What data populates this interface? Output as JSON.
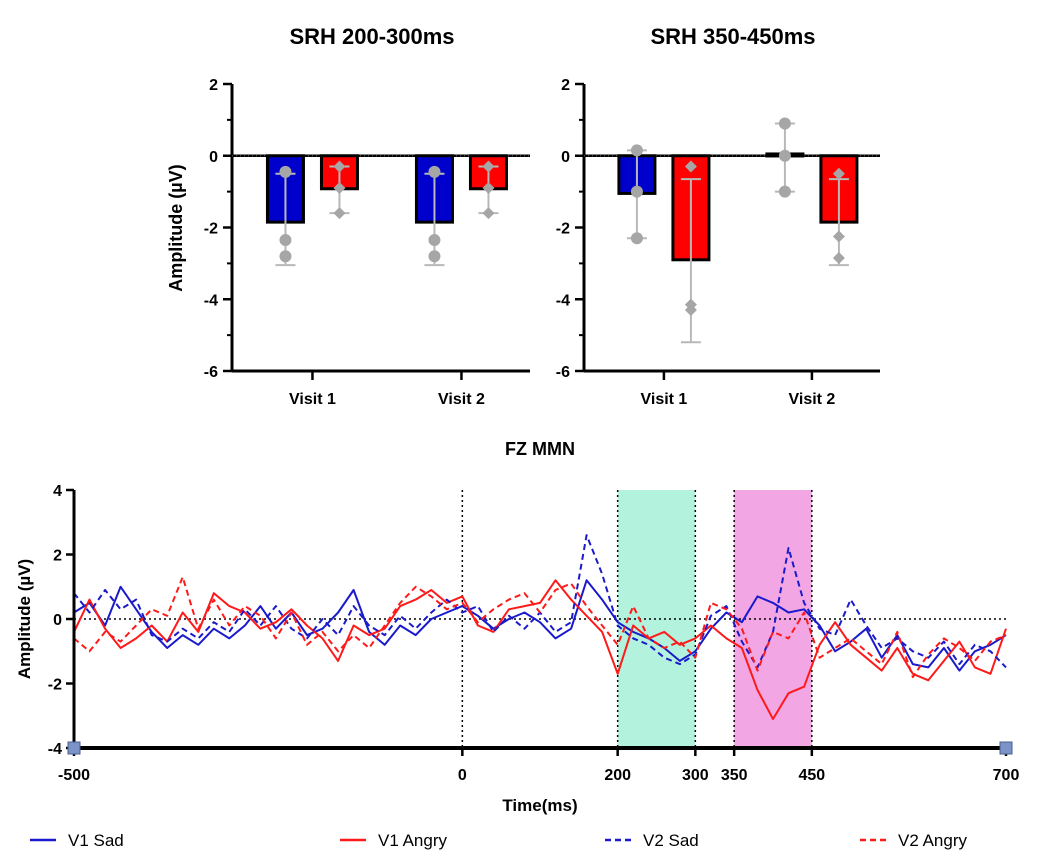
{
  "chart_data": [
    {
      "type": "bar",
      "title": "SRH 200-300ms",
      "ylabel": "Amplitude (µV)",
      "xlabel": "",
      "ylim": [
        -6,
        2
      ],
      "yticks": [
        "2",
        "0",
        "-2",
        "-4",
        "-6"
      ],
      "categories": [
        "Visit 1",
        "Visit 2"
      ],
      "series": [
        {
          "color": "#0000cc",
          "values": [
            -1.85,
            -1.85
          ],
          "error_low": [
            -3.05,
            -3.05
          ],
          "error_high": [
            -0.5,
            -0.5
          ],
          "points": [
            [
              -0.45,
              -2.35,
              -2.8
            ],
            [
              -0.45,
              -2.35,
              -2.8
            ]
          ],
          "marker": "circle"
        },
        {
          "color": "#ff0000",
          "values": [
            -0.92,
            -0.92
          ],
          "error_low": [
            -1.6,
            -1.6
          ],
          "error_high": [
            -0.3,
            -0.3
          ],
          "points": [
            [
              -0.3,
              -0.9,
              -1.6
            ],
            [
              -0.3,
              -0.9,
              -1.6
            ]
          ],
          "marker": "diamond"
        }
      ]
    },
    {
      "type": "bar",
      "title": "SRH 350-450ms",
      "ylabel": "",
      "xlabel": "",
      "ylim": [
        -6,
        2
      ],
      "yticks": [
        "2",
        "0",
        "-2",
        "-4",
        "-6"
      ],
      "categories": [
        "Visit 1",
        "Visit 2"
      ],
      "series": [
        {
          "color": "#0000cc",
          "values": [
            -1.05,
            0.05
          ],
          "error_low": [
            -2.3,
            -1.0
          ],
          "error_high": [
            0.15,
            0.9
          ],
          "points": [
            [
              0.15,
              -1.0,
              -2.3
            ],
            [
              0.9,
              0.0,
              -1.0
            ]
          ],
          "marker": "circle"
        },
        {
          "color": "#ff0000",
          "values": [
            -2.9,
            -1.85
          ],
          "error_low": [
            -5.2,
            -3.05
          ],
          "error_high": [
            -0.65,
            -0.65
          ],
          "points": [
            [
              -0.3,
              -4.3,
              -4.15
            ],
            [
              -0.5,
              -2.25,
              -2.85
            ]
          ],
          "marker": "diamond"
        }
      ]
    },
    {
      "type": "line",
      "title": "FZ MMN",
      "xlabel": "Time(ms)",
      "ylabel": "Amplitude (µV)",
      "xlim": [
        -500,
        700
      ],
      "ylim": [
        -4,
        4
      ],
      "yticks": [
        "4",
        "2",
        "0",
        "-2",
        "-4"
      ],
      "xticks": [
        {
          "value": -500,
          "label": "-500"
        },
        {
          "value": 0,
          "label": "0"
        },
        {
          "value": 200,
          "label": "200"
        },
        {
          "value": 300,
          "label": "300"
        },
        {
          "value": 350,
          "label": "350"
        },
        {
          "value": 450,
          "label": "450"
        },
        {
          "value": 700,
          "label": "700"
        }
      ],
      "shaded_windows": [
        {
          "from": 200,
          "to": 300,
          "color": "#b3f2dd"
        },
        {
          "from": 350,
          "to": 450,
          "color": "#f2a7e4"
        }
      ],
      "series": [
        {
          "name": "V1 Sad",
          "color": "#1a1acc",
          "dash": false,
          "x": [
            -500,
            -480,
            -460,
            -440,
            -420,
            -400,
            -380,
            -360,
            -340,
            -320,
            -300,
            -280,
            -260,
            -240,
            -220,
            -200,
            -180,
            -160,
            -140,
            -120,
            -100,
            -80,
            -60,
            -40,
            -20,
            0,
            20,
            40,
            60,
            80,
            100,
            120,
            140,
            160,
            180,
            200,
            220,
            240,
            260,
            280,
            300,
            320,
            340,
            360,
            380,
            400,
            420,
            440,
            460,
            480,
            500,
            520,
            540,
            560,
            580,
            600,
            620,
            640,
            660,
            680,
            700
          ],
          "y": [
            0.2,
            0.5,
            -0.2,
            1.0,
            0.3,
            -0.4,
            -0.9,
            -0.5,
            -0.8,
            -0.3,
            -0.6,
            -0.2,
            0.4,
            -0.3,
            0.2,
            -0.5,
            -0.3,
            0.2,
            0.9,
            -0.4,
            -0.8,
            -0.2,
            -0.5,
            0.0,
            0.2,
            0.4,
            0.1,
            -0.3,
            0.0,
            0.2,
            -0.1,
            -0.6,
            -0.3,
            1.2,
            0.6,
            -0.1,
            -0.4,
            -0.6,
            -0.9,
            -1.3,
            -1.0,
            -0.3,
            0.2,
            -0.1,
            0.7,
            0.5,
            0.2,
            0.3,
            -0.2,
            -1.0,
            -0.7,
            -0.3,
            -1.2,
            -0.5,
            -1.4,
            -1.5,
            -0.9,
            -1.6,
            -1.0,
            -0.8,
            -0.5
          ]
        },
        {
          "name": "V1 Angry",
          "color": "#ff1a1a",
          "dash": false,
          "x": [
            -500,
            -480,
            -460,
            -440,
            -420,
            -400,
            -380,
            -360,
            -340,
            -320,
            -300,
            -280,
            -260,
            -240,
            -220,
            -200,
            -180,
            -160,
            -140,
            -120,
            -100,
            -80,
            -60,
            -40,
            -20,
            0,
            20,
            40,
            60,
            80,
            100,
            120,
            140,
            160,
            180,
            200,
            220,
            240,
            260,
            280,
            300,
            320,
            340,
            360,
            380,
            400,
            420,
            440,
            460,
            480,
            500,
            520,
            540,
            560,
            580,
            600,
            620,
            640,
            660,
            680,
            700
          ],
          "y": [
            -0.4,
            0.6,
            -0.3,
            -0.9,
            -0.6,
            -0.2,
            -0.7,
            0.2,
            -0.4,
            0.8,
            0.4,
            0.2,
            -0.3,
            -0.1,
            0.3,
            -0.2,
            -0.6,
            -1.3,
            -0.2,
            -0.5,
            -0.3,
            0.4,
            0.6,
            0.9,
            0.5,
            0.7,
            -0.2,
            -0.4,
            0.3,
            0.4,
            0.5,
            1.2,
            0.6,
            0.1,
            -0.4,
            -1.7,
            -0.2,
            -0.6,
            -0.4,
            -0.8,
            -0.6,
            -0.2,
            -0.6,
            -0.9,
            -2.2,
            -3.1,
            -2.3,
            -2.1,
            -0.8,
            -0.1,
            -0.8,
            -1.2,
            -1.6,
            -0.9,
            -1.7,
            -1.9,
            -1.3,
            -0.7,
            -1.5,
            -1.7,
            -0.3
          ]
        },
        {
          "name": "V2 Sad",
          "color": "#1a1acc",
          "dash": true,
          "x": [
            -500,
            -480,
            -460,
            -440,
            -420,
            -400,
            -380,
            -360,
            -340,
            -320,
            -300,
            -280,
            -260,
            -240,
            -220,
            -200,
            -180,
            -160,
            -140,
            -120,
            -100,
            -80,
            -60,
            -40,
            -20,
            0,
            20,
            40,
            60,
            80,
            100,
            120,
            140,
            160,
            180,
            200,
            220,
            240,
            260,
            280,
            300,
            320,
            340,
            360,
            380,
            400,
            420,
            440,
            460,
            480,
            500,
            520,
            540,
            560,
            580,
            600,
            620,
            640,
            660,
            680,
            700
          ],
          "y": [
            0.8,
            0.2,
            0.9,
            0.3,
            0.6,
            -0.5,
            -0.7,
            -0.3,
            -0.6,
            -0.1,
            -0.4,
            0.3,
            -0.2,
            0.4,
            -0.3,
            -0.6,
            0.0,
            -0.5,
            0.4,
            -0.2,
            -0.5,
            0.1,
            -0.3,
            0.2,
            0.6,
            0.2,
            0.4,
            -0.4,
            0.1,
            -0.3,
            0.2,
            -0.4,
            -0.1,
            2.6,
            1.4,
            -0.2,
            -0.6,
            -0.8,
            -1.2,
            -1.4,
            -1.1,
            0.1,
            0.4,
            -0.7,
            -1.5,
            -0.4,
            2.2,
            0.5,
            -0.3,
            -0.5,
            0.6,
            -0.2,
            -0.9,
            -0.6,
            -1.0,
            -1.2,
            -0.7,
            -1.4,
            -0.8,
            -1.0,
            -1.5
          ]
        },
        {
          "name": "V2 Angry",
          "color": "#ff1a1a",
          "dash": true,
          "x": [
            -500,
            -480,
            -460,
            -440,
            -420,
            -400,
            -380,
            -360,
            -340,
            -320,
            -300,
            -280,
            -260,
            -240,
            -220,
            -200,
            -180,
            -160,
            -140,
            -120,
            -100,
            -80,
            -60,
            -40,
            -20,
            0,
            20,
            40,
            60,
            80,
            100,
            120,
            140,
            160,
            180,
            200,
            220,
            240,
            260,
            280,
            300,
            320,
            340,
            360,
            380,
            400,
            420,
            440,
            460,
            480,
            500,
            520,
            540,
            560,
            580,
            600,
            620,
            640,
            660,
            680,
            700
          ],
          "y": [
            -0.6,
            -1.0,
            -0.4,
            -0.7,
            -0.2,
            0.3,
            0.1,
            1.3,
            -0.3,
            0.6,
            -0.2,
            0.4,
            0.1,
            -0.6,
            0.2,
            -0.8,
            -0.4,
            -1.0,
            -0.5,
            -0.9,
            -0.2,
            0.5,
            1.0,
            0.7,
            0.3,
            0.5,
            -0.1,
            0.3,
            0.6,
            0.8,
            0.2,
            0.9,
            1.1,
            0.4,
            -0.2,
            -0.8,
            0.4,
            -0.6,
            -0.9,
            -0.7,
            -1.2,
            0.5,
            0.3,
            -0.3,
            -1.6,
            -0.4,
            -0.6,
            0.2,
            -1.2,
            -0.9,
            -0.6,
            -1.0,
            -1.4,
            -0.4,
            -1.8,
            -1.1,
            -0.6,
            -0.9,
            -1.3,
            -0.7,
            -0.5
          ]
        }
      ]
    }
  ]
}
